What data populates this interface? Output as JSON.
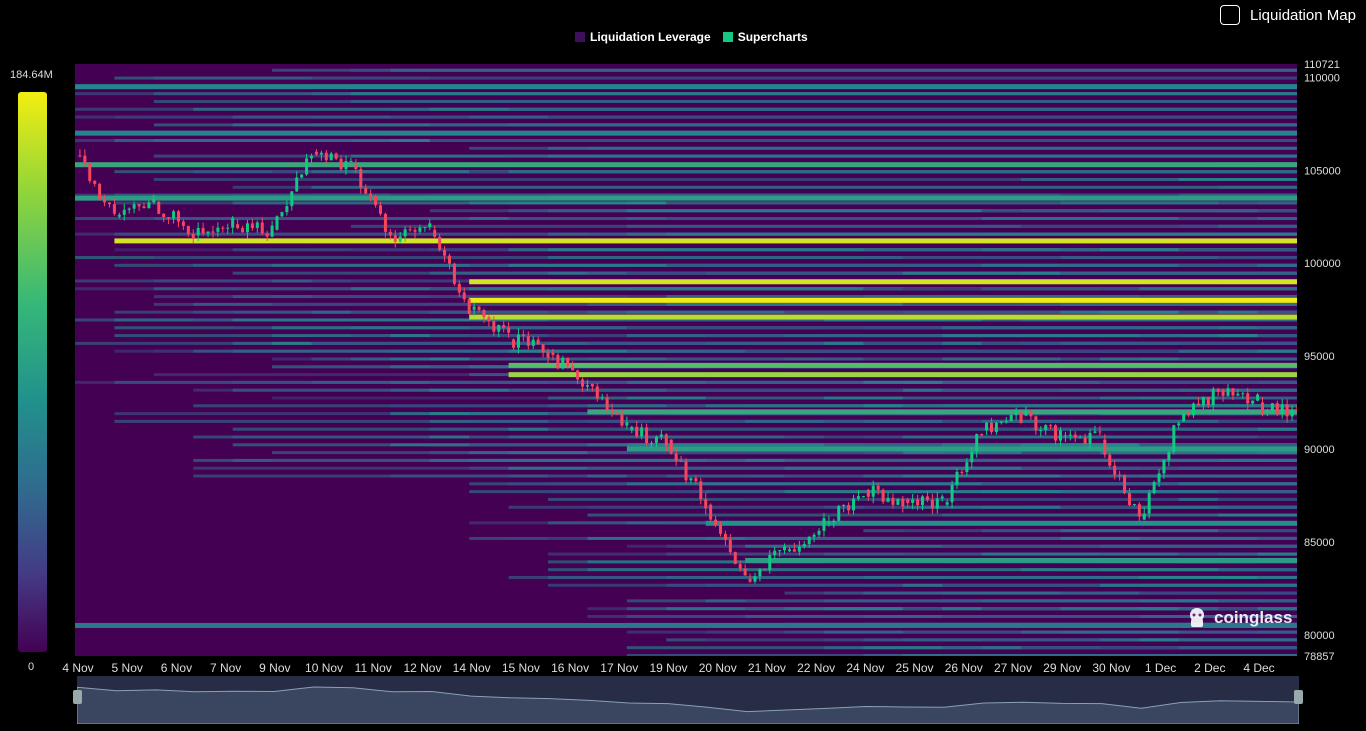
{
  "toggle": {
    "label": "Liquidation Map",
    "checked": false
  },
  "legend": [
    {
      "label": "Liquidation Leverage",
      "color": "#3d0f5c"
    },
    {
      "label": "Supercharts",
      "color": "#16c784"
    }
  ],
  "colorbar": {
    "max_label": "184.64M",
    "min_label": "0"
  },
  "watermark": {
    "text": "coinglass",
    "icon": "coinglass-logo-icon"
  },
  "colors": {
    "background": "#440154",
    "candle_up": "#0ecb81",
    "candle_down": "#f6465d"
  },
  "chart_data": {
    "type": "heatmap",
    "title": "",
    "ylim": [
      78857,
      110721
    ],
    "y_tick_labels": [
      "110721",
      "110000",
      "105000",
      "100000",
      "95000",
      "90000",
      "85000",
      "80000",
      "78857"
    ],
    "x_tick_labels": [
      "4 Nov",
      "5 Nov",
      "6 Nov",
      "7 Nov",
      "9 Nov",
      "10 Nov",
      "11 Nov",
      "12 Nov",
      "14 Nov",
      "15 Nov",
      "16 Nov",
      "17 Nov",
      "19 Nov",
      "20 Nov",
      "21 Nov",
      "22 Nov",
      "24 Nov",
      "25 Nov",
      "26 Nov",
      "27 Nov",
      "29 Nov",
      "30 Nov",
      "1 Dec",
      "2 Dec",
      "4 Dec"
    ],
    "x_range": [
      "4 Nov",
      "5 Dec"
    ],
    "price_series_name": "Supercharts",
    "price_close": [
      {
        "date": "4 Nov",
        "price": 105800
      },
      {
        "date": "5 Nov",
        "price": 102500
      },
      {
        "date": "6 Nov",
        "price": 103300
      },
      {
        "date": "7 Nov",
        "price": 101500
      },
      {
        "date": "8 Nov",
        "price": 102100
      },
      {
        "date": "9 Nov",
        "price": 101800
      },
      {
        "date": "10 Nov",
        "price": 106000
      },
      {
        "date": "11 Nov",
        "price": 105300
      },
      {
        "date": "12 Nov",
        "price": 101500
      },
      {
        "date": "13 Nov",
        "price": 101800
      },
      {
        "date": "14 Nov",
        "price": 97500
      },
      {
        "date": "15 Nov",
        "price": 95900
      },
      {
        "date": "16 Nov",
        "price": 95200
      },
      {
        "date": "17 Nov",
        "price": 93500
      },
      {
        "date": "18 Nov",
        "price": 91000
      },
      {
        "date": "19 Nov",
        "price": 90500
      },
      {
        "date": "20 Nov",
        "price": 87000
      },
      {
        "date": "21 Nov",
        "price": 83000
      },
      {
        "date": "22 Nov",
        "price": 84500
      },
      {
        "date": "23 Nov",
        "price": 86000
      },
      {
        "date": "24 Nov",
        "price": 87800
      },
      {
        "date": "25 Nov",
        "price": 87300
      },
      {
        "date": "26 Nov",
        "price": 87000
      },
      {
        "date": "27 Nov",
        "price": 91000
      },
      {
        "date": "28 Nov",
        "price": 91800
      },
      {
        "date": "29 Nov",
        "price": 90700
      },
      {
        "date": "30 Nov",
        "price": 90500
      },
      {
        "date": "1 Dec",
        "price": 86200
      },
      {
        "date": "2 Dec",
        "price": 91500
      },
      {
        "date": "3 Dec",
        "price": 93200
      },
      {
        "date": "4 Dec",
        "price": 92500
      },
      {
        "date": "5 Dec",
        "price": 92000
      }
    ],
    "liquidation_bands": [
      {
        "price": 98000,
        "intensity": 1.0
      },
      {
        "price": 97100,
        "intensity": 0.9
      },
      {
        "price": 101200,
        "intensity": 0.95
      },
      {
        "price": 99000,
        "intensity": 0.95
      },
      {
        "price": 94000,
        "intensity": 0.85
      },
      {
        "price": 94500,
        "intensity": 0.7
      },
      {
        "price": 105300,
        "intensity": 0.6
      },
      {
        "price": 103500,
        "intensity": 0.55
      },
      {
        "price": 109500,
        "intensity": 0.45
      },
      {
        "price": 107000,
        "intensity": 0.45
      },
      {
        "price": 92000,
        "intensity": 0.6
      },
      {
        "price": 90000,
        "intensity": 0.55
      },
      {
        "price": 86000,
        "intensity": 0.5
      },
      {
        "price": 84000,
        "intensity": 0.55
      },
      {
        "price": 80500,
        "intensity": 0.4
      }
    ],
    "grid": false,
    "legend_position": "top-center"
  }
}
